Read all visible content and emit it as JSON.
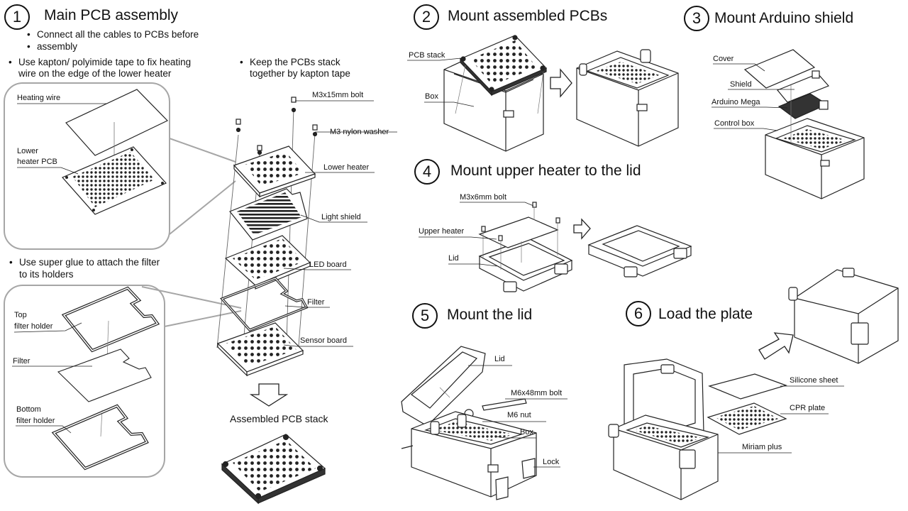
{
  "steps": {
    "s1": {
      "num": "1",
      "title": "Main PCB assembly"
    },
    "s2": {
      "num": "2",
      "title": "Mount assembled PCBs"
    },
    "s3": {
      "num": "3",
      "title": "Mount Arduino shield"
    },
    "s4": {
      "num": "4",
      "title": "Mount upper heater to the lid"
    },
    "s5": {
      "num": "5",
      "title": "Mount the lid"
    },
    "s6": {
      "num": "6",
      "title": "Load the plate"
    }
  },
  "notes": {
    "cables_1": "Connect all the cables to PCBs before",
    "cables_2": "assembly",
    "kapton_1": "Use kapton/ polyimide tape to fix heating",
    "kapton_2": "wire on the edge of the lower heater",
    "stack_1": "Keep the PCBs stack",
    "stack_2": "together by kapton tape",
    "glue_1": "Use super glue to attach the filter",
    "glue_2": "to its holders"
  },
  "labels": {
    "heating_wire": "Heating wire",
    "lower_heater_pcb_1": "Lower",
    "lower_heater_pcb_2": "heater PCB",
    "top_filter_1": "Top",
    "top_filter_2": "filter holder",
    "filter_left": "Filter",
    "bottom_filter_1": "Bottom",
    "bottom_filter_2": "filter holder",
    "m3x15": "M3x15mm bolt",
    "m3_washer": "M3 nylon washer",
    "lower_heater": "Lower heater",
    "light_shield": "Light shield",
    "led_board": "LED board",
    "filter": "Filter",
    "sensor_board": "Sensor board",
    "assembled_stack": "Assembled PCB stack",
    "pcb_stack": "PCB stack",
    "box_2": "Box",
    "cover": "Cover",
    "shield": "Shield",
    "arduino_mega": "Arduino Mega",
    "control_box": "Control box",
    "m3x6": "M3x6mm bolt",
    "upper_heater": "Upper heater",
    "lid_4": "Lid",
    "lid_5": "Lid",
    "m6x48": "M6x48mm bolt",
    "m6_nut": "M6 nut",
    "box_5": "Box",
    "lock": "Lock",
    "silicone_sheet": "Silicone sheet",
    "cpr_plate": "CPR plate",
    "miriam_plus": "Miriam plus"
  },
  "colors": {
    "line": "#222222",
    "callout": "#a6a6a6",
    "board_fill": "#ffffff",
    "hole": "#333333"
  }
}
